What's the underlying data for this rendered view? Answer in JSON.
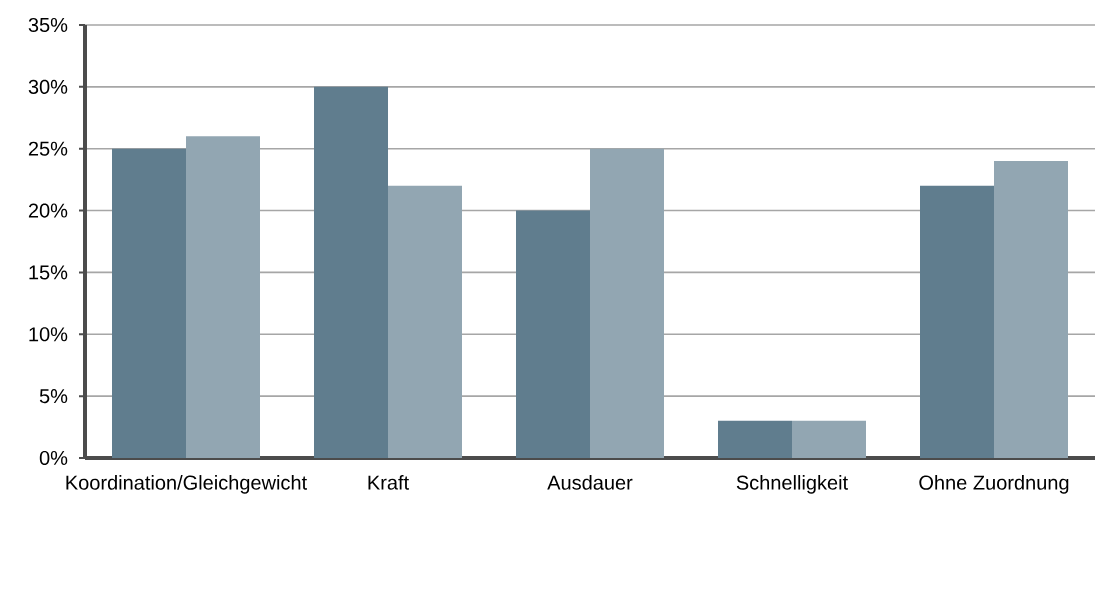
{
  "chart_data": {
    "type": "bar",
    "categories": [
      "Koordination/Gleichgewicht",
      "Kraft",
      "Ausdauer",
      "Schnelligkeit",
      "Ohne Zuordnung"
    ],
    "series": [
      {
        "color": "#607d8e",
        "values": [
          25,
          30,
          20,
          3,
          22
        ]
      },
      {
        "color": "#92a6b2",
        "values": [
          26,
          22,
          25,
          3,
          24
        ]
      }
    ],
    "ylim": [
      0,
      35
    ],
    "yticks": [
      {
        "value": 0,
        "label": "0%"
      },
      {
        "value": 5,
        "label": "5%"
      },
      {
        "value": 10,
        "label": "10%"
      },
      {
        "value": 15,
        "label": "15%"
      },
      {
        "value": 20,
        "label": "20%"
      },
      {
        "value": 25,
        "label": "25%"
      },
      {
        "value": 30,
        "label": "30%"
      },
      {
        "value": 35,
        "label": "35%"
      }
    ],
    "grid": "y"
  }
}
